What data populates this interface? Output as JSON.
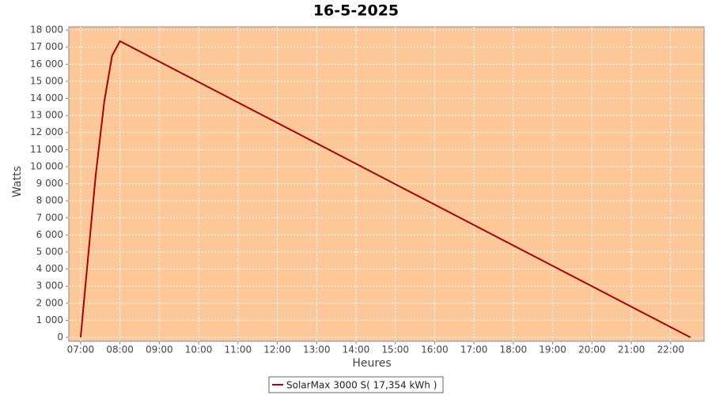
{
  "chart_data": {
    "type": "line",
    "title": "16-5-2025",
    "x_label": "Heures",
    "y_label": "Watts",
    "x": [
      "07:00",
      "07:23",
      "07:36",
      "07:48",
      "08:00",
      "22:30"
    ],
    "series": [
      {
        "name": "SolarMax 3000 S( 17,354 kWh )",
        "color": "#aa0000",
        "values": [
          0,
          9500,
          13800,
          16500,
          17350,
          0
        ]
      }
    ],
    "xlim": [
      "06:42",
      "22:51"
    ],
    "xticks": [
      "07:00",
      "08:00",
      "09:00",
      "10:00",
      "11:00",
      "12:00",
      "13:00",
      "14:00",
      "15:00",
      "16:00",
      "17:00",
      "18:00",
      "19:00",
      "20:00",
      "21:00",
      "22:00"
    ],
    "ylim": [
      -230,
      18190
    ],
    "yticks": [
      0,
      {
        "value": 1000,
        "label": "1 000"
      },
      {
        "value": 2000,
        "label": "2 000"
      },
      {
        "value": 3000,
        "label": "3 000"
      },
      {
        "value": 4000,
        "label": "4 000"
      },
      {
        "value": 5000,
        "label": "5 000"
      },
      {
        "value": 6000,
        "label": "6 000"
      },
      {
        "value": 7000,
        "label": "7 000"
      },
      {
        "value": 8000,
        "label": "8 000"
      },
      {
        "value": 9000,
        "label": "9 000"
      },
      {
        "value": 10000,
        "label": "10 000"
      },
      {
        "value": 11000,
        "label": "11 000"
      },
      {
        "value": 12000,
        "label": "12 000"
      },
      {
        "value": 13000,
        "label": "13 000"
      },
      {
        "value": 14000,
        "label": "14 000"
      },
      {
        "value": 15000,
        "label": "15 000"
      },
      {
        "value": 16000,
        "label": "16 000"
      },
      {
        "value": 17000,
        "label": "17 000"
      },
      {
        "value": 18000,
        "label": "18 000"
      }
    ],
    "grid": true,
    "plot_background": "#fdc899",
    "legend_position": "bottom"
  }
}
